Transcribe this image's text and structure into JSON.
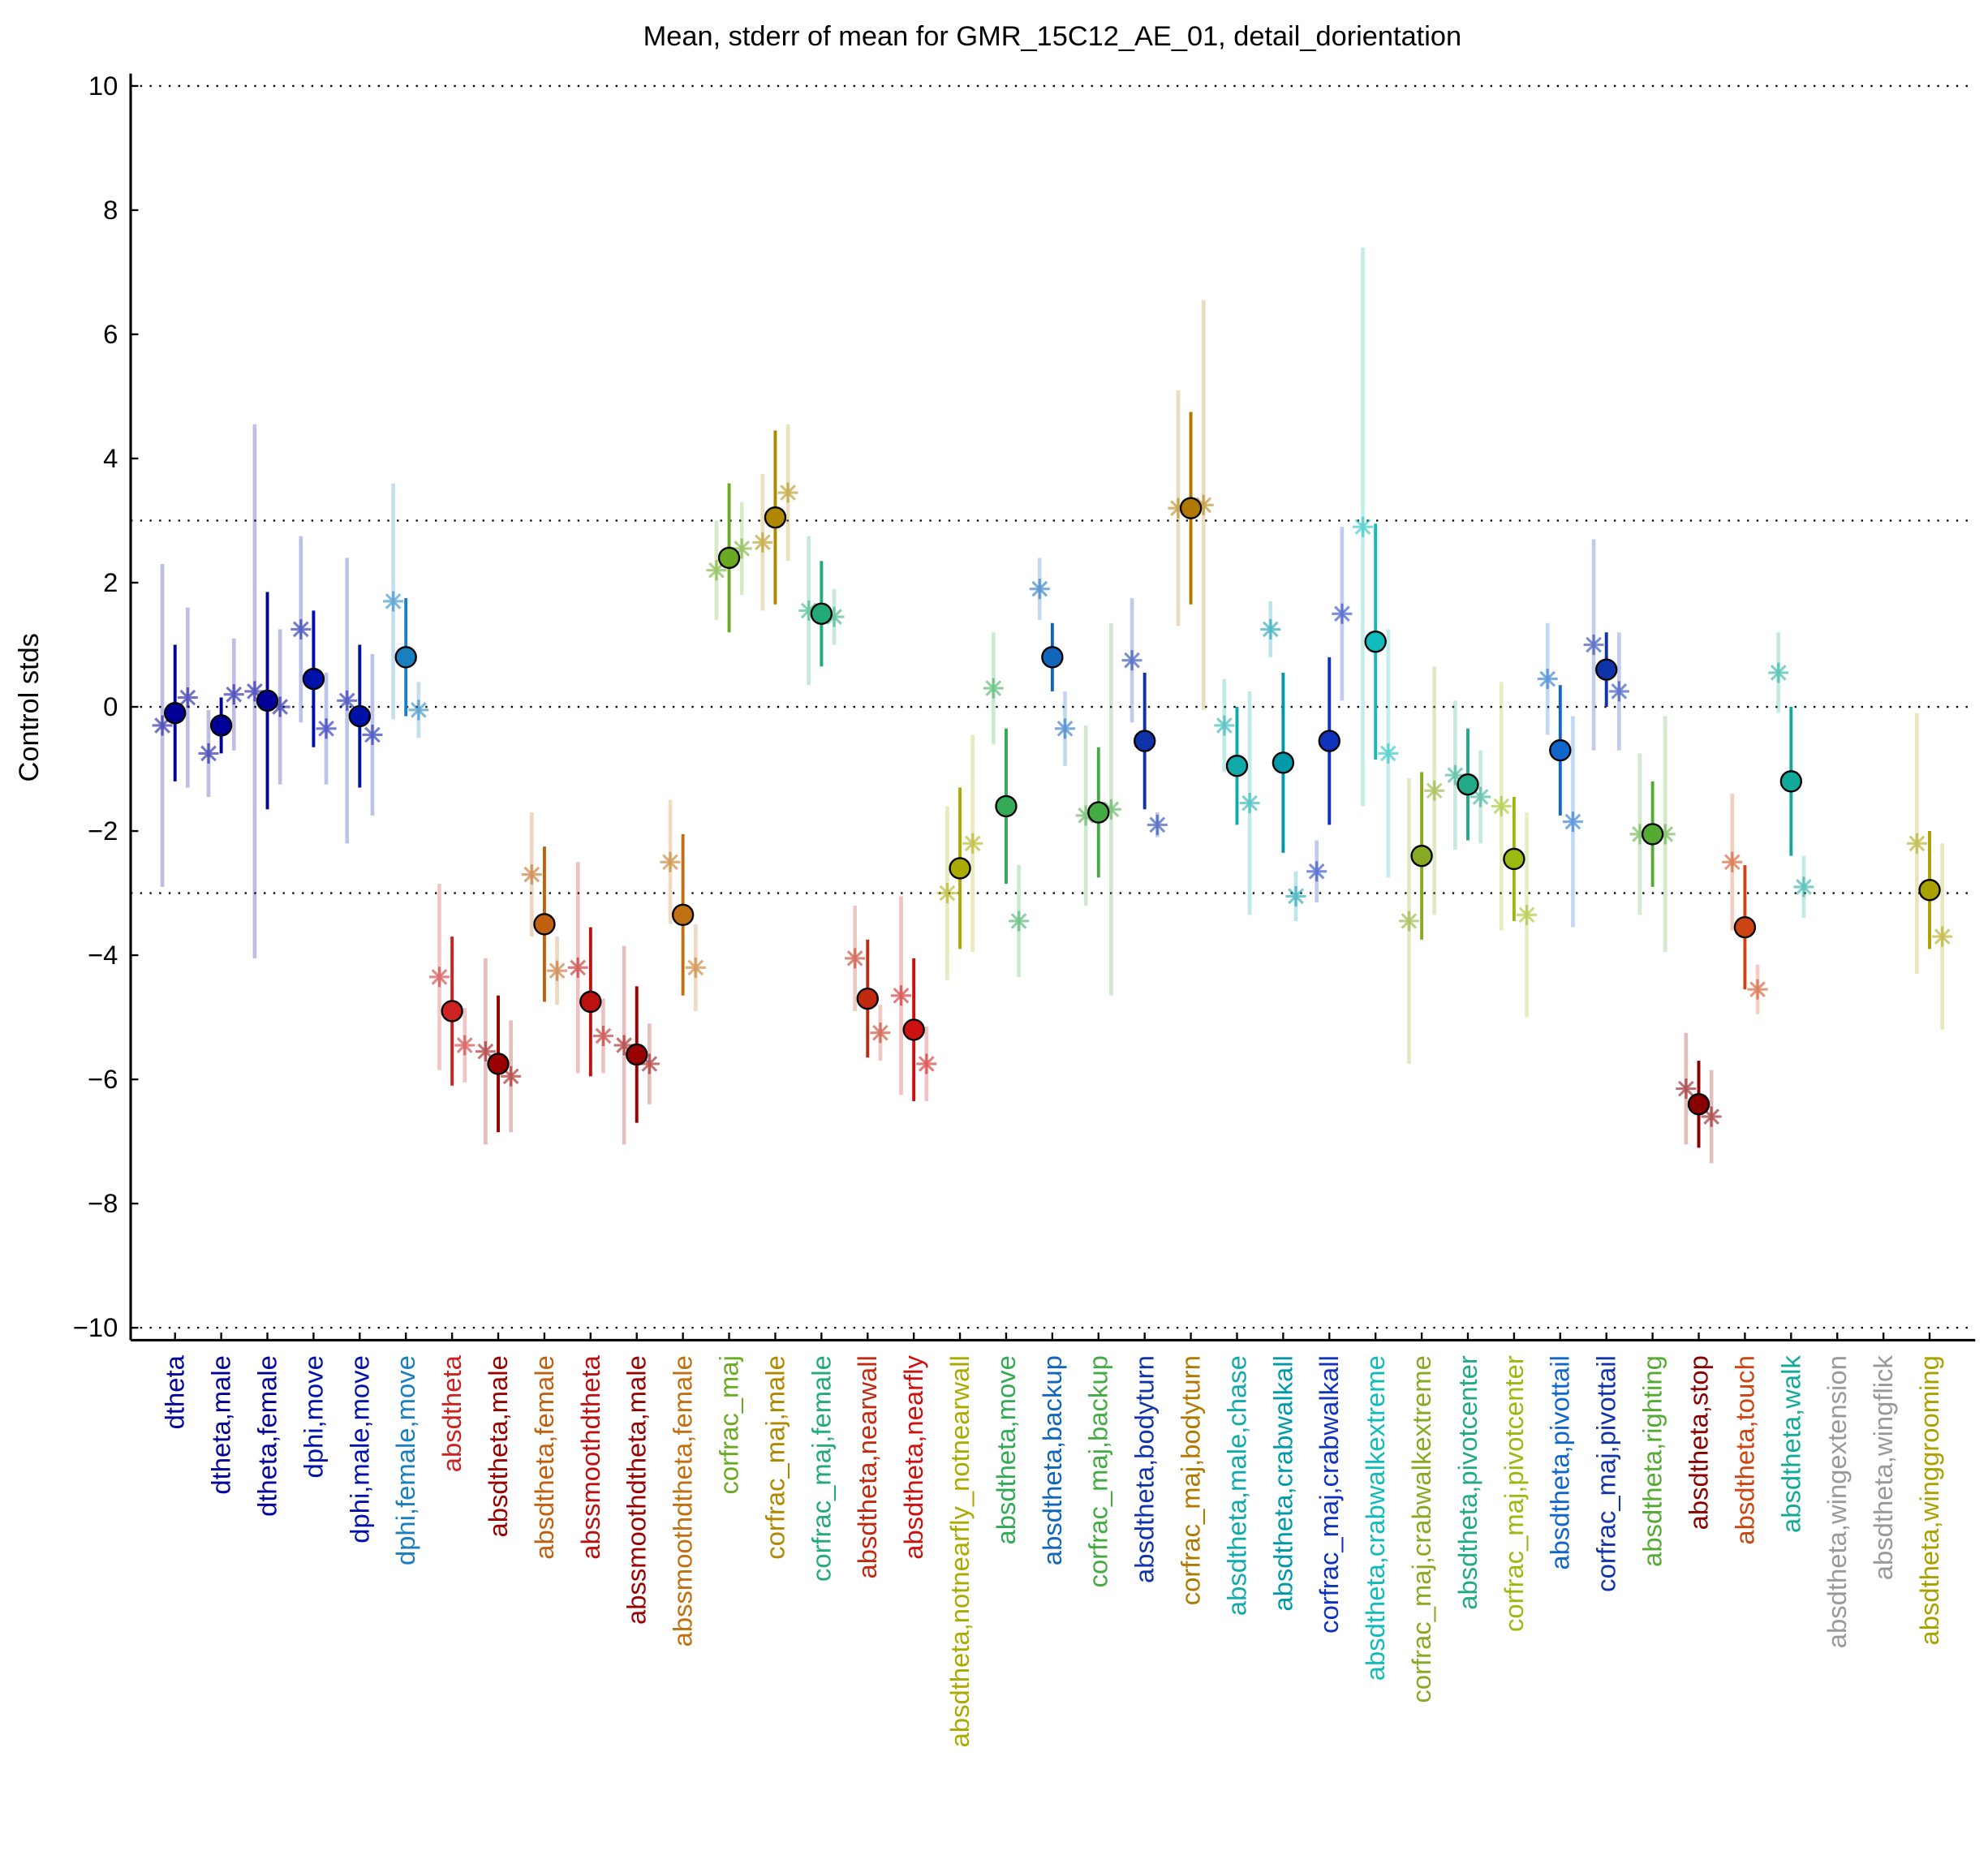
{
  "chart_data": {
    "type": "errorbar",
    "title": "Mean, stderr of mean for GMR_15C12_AE_01, detail_dorientation",
    "ylabel": "Control stds",
    "categories": [
      "dtheta",
      "dtheta,male",
      "dtheta,female",
      "dphi,move",
      "dphi,male,move",
      "dphi,female,move",
      "absdtheta",
      "absdtheta,male",
      "absdtheta,female",
      "abssmoothdtheta",
      "abssmoothdtheta,male",
      "abssmoothdtheta,female",
      "corfrac_maj",
      "corfrac_maj,male",
      "corfrac_maj,female",
      "absdtheta,nearwall",
      "absdtheta,nearfly",
      "absdtheta,notnearfly_notnearwall",
      "absdtheta,move",
      "absdtheta,backup",
      "corfrac_maj,backup",
      "absdtheta,bodyturn",
      "corfrac_maj,bodyturn",
      "absdtheta,male,chase",
      "absdtheta,crabwalkall",
      "corfrac_maj,crabwalkall",
      "absdtheta,crabwalkextreme",
      "corfrac_maj,crabwalkextreme",
      "absdtheta,pivotcenter",
      "corfrac_maj,pivotcenter",
      "absdtheta,pivottail",
      "corfrac_maj,pivottail",
      "absdtheta,righting",
      "absdtheta,stop",
      "absdtheta,touch",
      "absdtheta,walk",
      "absdtheta,wingextension",
      "absdtheta,wingflick",
      "absdtheta,winggrooming"
    ],
    "colors": [
      "#000099",
      "#000099",
      "#000099",
      "#0011aa",
      "#0011aa",
      "#1a7fbf",
      "#cc2222",
      "#990000",
      "#c06010",
      "#bb1111",
      "#990000",
      "#c07010",
      "#6aaa22",
      "#b08800",
      "#22aa77",
      "#c02a10",
      "#cc1111",
      "#aaaa00",
      "#33aa55",
      "#1166bb",
      "#44aa44",
      "#1133aa",
      "#b07800",
      "#11aaaa",
      "#0099aa",
      "#1133bb",
      "#11bbbb",
      "#88aa22",
      "#22aa88",
      "#99bb11",
      "#1166cc",
      "#1133aa",
      "#55aa33",
      "#880000",
      "#cc4411",
      "#11aa99",
      "#999999",
      "#999999",
      "#aaa000"
    ],
    "values": [
      -0.1,
      -0.3,
      0.1,
      0.45,
      -0.15,
      0.8,
      -4.9,
      -5.75,
      -3.5,
      -4.75,
      -5.6,
      -3.35,
      2.4,
      3.05,
      1.5,
      -4.7,
      -5.2,
      -2.6,
      -1.6,
      0.8,
      -1.7,
      -0.55,
      3.2,
      -0.95,
      -0.9,
      -0.55,
      1.05,
      -2.4,
      -1.25,
      -2.45,
      -0.7,
      0.6,
      -2.05,
      -6.4,
      -3.55,
      -1.2,
      null,
      null,
      -2.95
    ],
    "errors": [
      1.1,
      0.45,
      1.75,
      1.1,
      1.15,
      0.95,
      1.2,
      1.1,
      1.25,
      1.2,
      1.1,
      1.3,
      1.2,
      1.4,
      0.85,
      0.95,
      1.15,
      1.3,
      1.25,
      0.55,
      1.05,
      1.1,
      1.55,
      0.95,
      1.45,
      1.35,
      1.9,
      1.35,
      0.9,
      1.0,
      1.05,
      0.6,
      0.85,
      0.7,
      1.0,
      1.2,
      null,
      null,
      0.95
    ],
    "male_values": [
      -0.3,
      -0.75,
      0.25,
      1.25,
      0.1,
      1.7,
      -4.35,
      -5.55,
      -2.7,
      -4.2,
      -5.45,
      -2.5,
      2.2,
      2.65,
      1.55,
      -4.05,
      -4.65,
      -3.0,
      0.3,
      1.9,
      -1.75,
      0.75,
      3.2,
      -0.3,
      1.25,
      -2.65,
      2.9,
      -3.45,
      -1.1,
      -1.6,
      0.45,
      1.0,
      -2.05,
      -6.15,
      -2.5,
      0.55,
      null,
      null,
      -2.2
    ],
    "male_errors": [
      2.6,
      0.7,
      4.3,
      1.5,
      2.3,
      1.9,
      1.5,
      1.5,
      1.0,
      1.7,
      1.6,
      1.0,
      0.8,
      1.1,
      1.2,
      0.85,
      1.6,
      1.4,
      0.9,
      0.5,
      1.45,
      1.0,
      1.9,
      0.75,
      0.45,
      0.5,
      4.5,
      2.3,
      1.2,
      2.0,
      0.9,
      1.7,
      1.3,
      0.9,
      1.1,
      0.65,
      null,
      null,
      2.1
    ],
    "female_values": [
      0.15,
      0.2,
      0,
      -0.35,
      -0.45,
      -0.05,
      -5.45,
      -5.95,
      -4.25,
      -5.3,
      -5.75,
      -4.2,
      2.55,
      3.45,
      1.45,
      -5.25,
      -5.75,
      -2.2,
      -3.45,
      -0.35,
      -1.65,
      -1.9,
      3.25,
      -1.55,
      -3.05,
      1.5,
      -0.75,
      -1.35,
      -1.45,
      -3.35,
      -1.85,
      0.25,
      -2.05,
      -6.6,
      -4.55,
      -2.9,
      null,
      null,
      -3.7
    ],
    "female_errors": [
      1.45,
      0.9,
      1.25,
      0.9,
      1.3,
      0.45,
      0.6,
      0.9,
      0.55,
      0.6,
      0.65,
      0.7,
      0.75,
      1.1,
      0.45,
      0.45,
      0.6,
      1.75,
      0.9,
      0.6,
      3.0,
      0.2,
      3.3,
      1.8,
      0.4,
      1.4,
      2.0,
      2.0,
      0.75,
      1.65,
      1.7,
      0.95,
      1.9,
      0.75,
      0.4,
      0.5,
      null,
      null,
      1.5
    ],
    "ylim": [
      -10.2,
      10.2
    ],
    "yticks": [
      {
        "value": -10,
        "label": "−10"
      },
      {
        "value": -8,
        "label": "−8"
      },
      {
        "value": -6,
        "label": "−6"
      },
      {
        "value": -4,
        "label": "−4"
      },
      {
        "value": -2,
        "label": "−2"
      },
      0,
      2,
      4,
      6,
      8,
      10
    ],
    "hlines": [
      -10,
      -3,
      0,
      3,
      10
    ]
  }
}
